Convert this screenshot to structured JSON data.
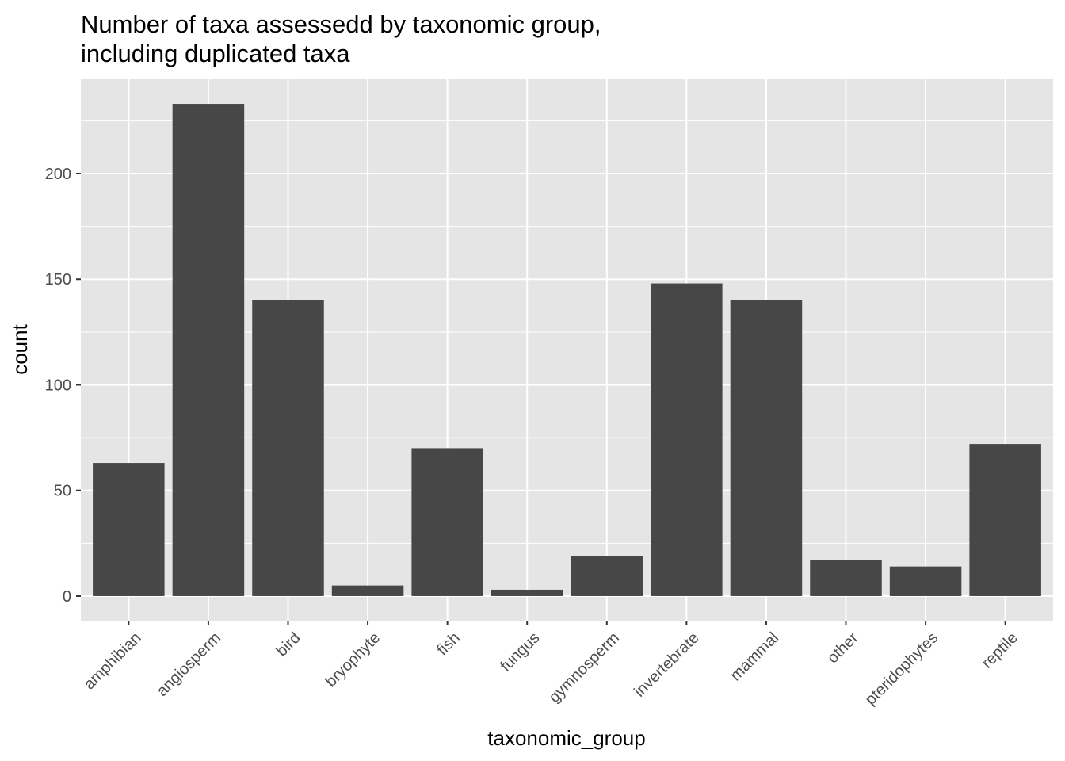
{
  "chart_data": {
    "type": "bar",
    "title": [
      "Number of taxa assessedd by taxonomic group,",
      "including duplicated taxa"
    ],
    "xlabel": "taxonomic_group",
    "ylabel": "count",
    "categories": [
      "amphibian",
      "angiosperm",
      "bird",
      "bryophyte",
      "fish",
      "fungus",
      "gymnosperm",
      "invertebrate",
      "mammal",
      "other",
      "pteridophytes",
      "reptile"
    ],
    "values": [
      63,
      233,
      140,
      5,
      70,
      3,
      19,
      148,
      140,
      17,
      14,
      72
    ],
    "yticks": [
      0,
      50,
      100,
      150,
      200
    ],
    "ylim": [
      -11.65,
      244.65
    ],
    "grid": true,
    "colors": {
      "bar": "#474747",
      "panel": "#e5e5e5",
      "grid": "#ffffff",
      "tick_text": "#4d4d4d",
      "tick_mark": "#333333"
    }
  }
}
